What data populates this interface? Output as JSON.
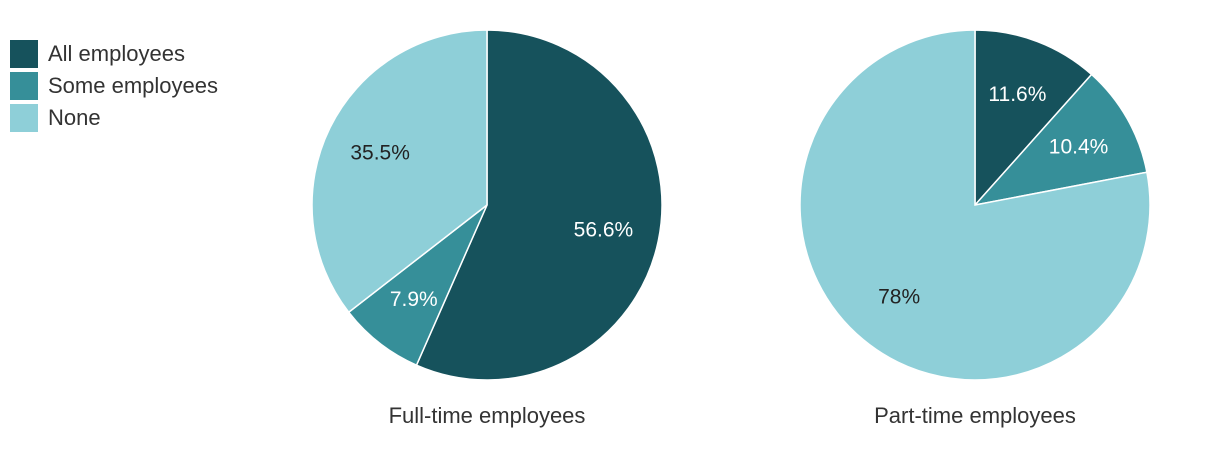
{
  "chart_data": {
    "type": "pie",
    "categories": [
      "All employees",
      "Some employees",
      "None"
    ],
    "colors": [
      "#16525c",
      "#368f99",
      "#8ecfd8"
    ],
    "legend_position": "top-left",
    "charts": [
      {
        "title": "Full-time employees",
        "values": [
          56.6,
          7.9,
          35.5
        ],
        "labels": [
          "56.6%",
          "7.9%",
          "35.5%"
        ]
      },
      {
        "title": "Part-time employees",
        "values": [
          11.6,
          10.4,
          78
        ],
        "labels": [
          "11.6%",
          "10.4%",
          "78%"
        ]
      }
    ]
  }
}
